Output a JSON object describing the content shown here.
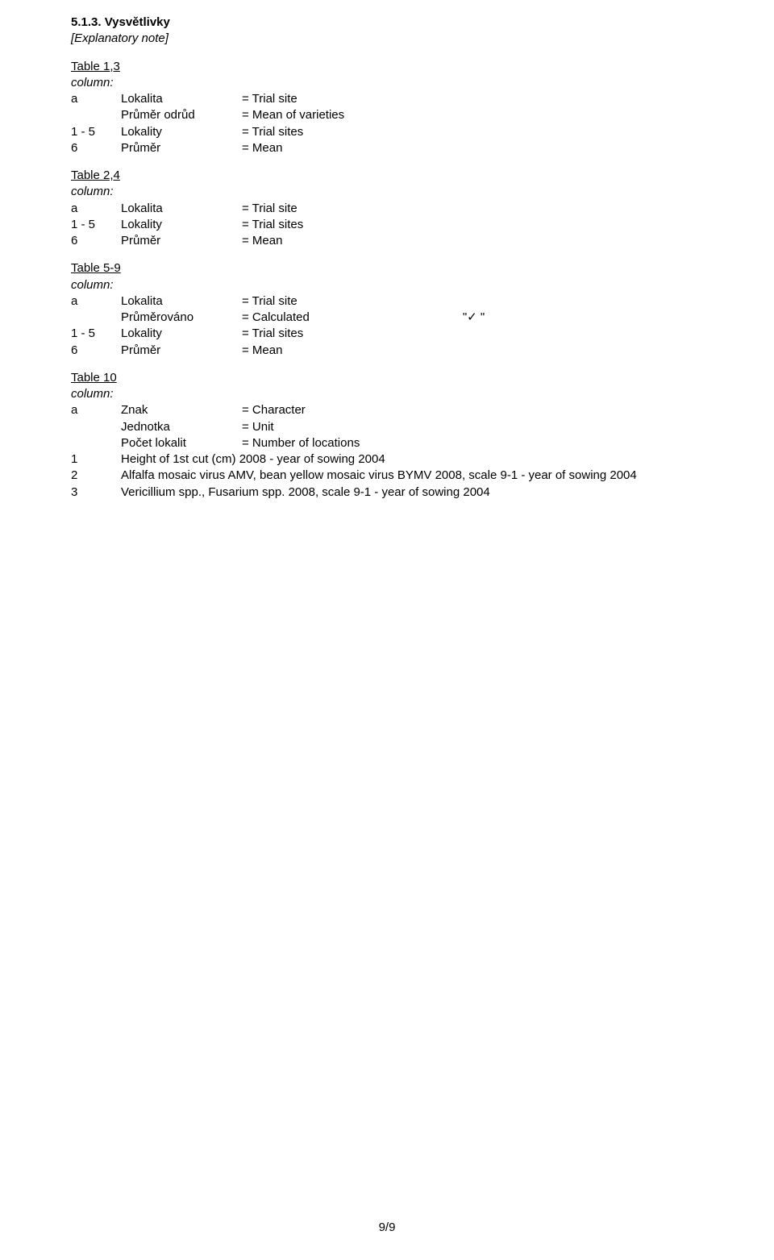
{
  "header": {
    "section_number": "5.1.3. Vysvětlivky",
    "subtitle": "[Explanatory note]"
  },
  "tables": [
    {
      "title": "Table 1,3",
      "column_label": "column:",
      "rows": [
        {
          "key": "a",
          "term": "Lokalita",
          "eq": "= Trial site",
          "extra": ""
        },
        {
          "key": "",
          "term": "Průměr odrůd",
          "eq": "= Mean of varieties",
          "extra": ""
        },
        {
          "key": "1 - 5",
          "term": "Lokality",
          "eq": "= Trial sites",
          "extra": ""
        },
        {
          "key": "6",
          "term": "Průměr",
          "eq": "= Mean",
          "extra": ""
        }
      ]
    },
    {
      "title": "Table 2,4",
      "column_label": "column:",
      "rows": [
        {
          "key": "a",
          "term": "Lokalita",
          "eq": "= Trial site",
          "extra": ""
        },
        {
          "key": "1 - 5",
          "term": "Lokality",
          "eq": "= Trial sites",
          "extra": ""
        },
        {
          "key": "6",
          "term": "Průměr",
          "eq": "= Mean",
          "extra": ""
        }
      ]
    },
    {
      "title": "Table 5-9",
      "column_label": "column:",
      "rows": [
        {
          "key": "a",
          "term": "Lokalita",
          "eq": "= Trial site",
          "extra": ""
        },
        {
          "key": "",
          "term": "Průměrováno",
          "eq": "= Calculated",
          "extra": "\"✓    \""
        },
        {
          "key": "1 - 5",
          "term": "Lokality",
          "eq": "= Trial sites",
          "extra": ""
        },
        {
          "key": "6",
          "term": "Průměr",
          "eq": "= Mean",
          "extra": ""
        }
      ]
    },
    {
      "title": "Table 10",
      "column_label": "column:",
      "rows": [
        {
          "key": "a",
          "term": "Znak",
          "eq": "= Character",
          "extra": ""
        },
        {
          "key": "",
          "term": "Jednotka",
          "eq": "= Unit",
          "extra": ""
        },
        {
          "key": "",
          "term": "Počet lokalit",
          "eq": "= Number of locations",
          "extra": ""
        }
      ],
      "footnotes": [
        {
          "key": "1",
          "text": "Height of 1st cut (cm) 2008 - year of sowing 2004"
        },
        {
          "key": "2",
          "text": "Alfalfa mosaic virus AMV, bean yellow mosaic virus BYMV 2008, scale 9-1 - year of sowing 2004"
        },
        {
          "key": "3",
          "text": "Vericillium spp., Fusarium spp. 2008, scale 9-1 - year of sowing 2004"
        }
      ]
    }
  ],
  "footer": "9/9"
}
